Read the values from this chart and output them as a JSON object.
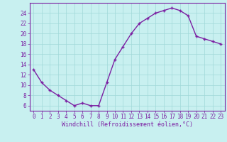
{
  "x": [
    0,
    1,
    2,
    3,
    4,
    5,
    6,
    7,
    8,
    9,
    10,
    11,
    12,
    13,
    14,
    15,
    16,
    17,
    18,
    19,
    20,
    21,
    22,
    23
  ],
  "y": [
    13,
    10.5,
    9,
    8,
    7,
    6,
    6.5,
    6,
    6,
    10.5,
    15,
    17.5,
    20,
    22,
    23,
    24,
    24.5,
    25,
    24.5,
    23.5,
    19.5,
    19,
    18.5,
    18
  ],
  "line_color": "#7b1fa2",
  "marker": "+",
  "marker_color": "#7b1fa2",
  "bg_color": "#c8f0f0",
  "grid_color": "#a0d8d8",
  "xlabel": "Windchill (Refroidissement éolien,°C)",
  "xlabel_color": "#7b1fa2",
  "tick_color": "#7b1fa2",
  "spine_color": "#7b1fa2",
  "ylim": [
    5.0,
    26.0
  ],
  "xlim": [
    -0.5,
    23.5
  ],
  "yticks": [
    6,
    8,
    10,
    12,
    14,
    16,
    18,
    20,
    22,
    24
  ],
  "xticks": [
    0,
    1,
    2,
    3,
    4,
    5,
    6,
    7,
    8,
    9,
    10,
    11,
    12,
    13,
    14,
    15,
    16,
    17,
    18,
    19,
    20,
    21,
    22,
    23
  ],
  "line_width": 1.0,
  "marker_size": 3,
  "tick_fontsize": 5.5,
  "xlabel_fontsize": 6.0
}
